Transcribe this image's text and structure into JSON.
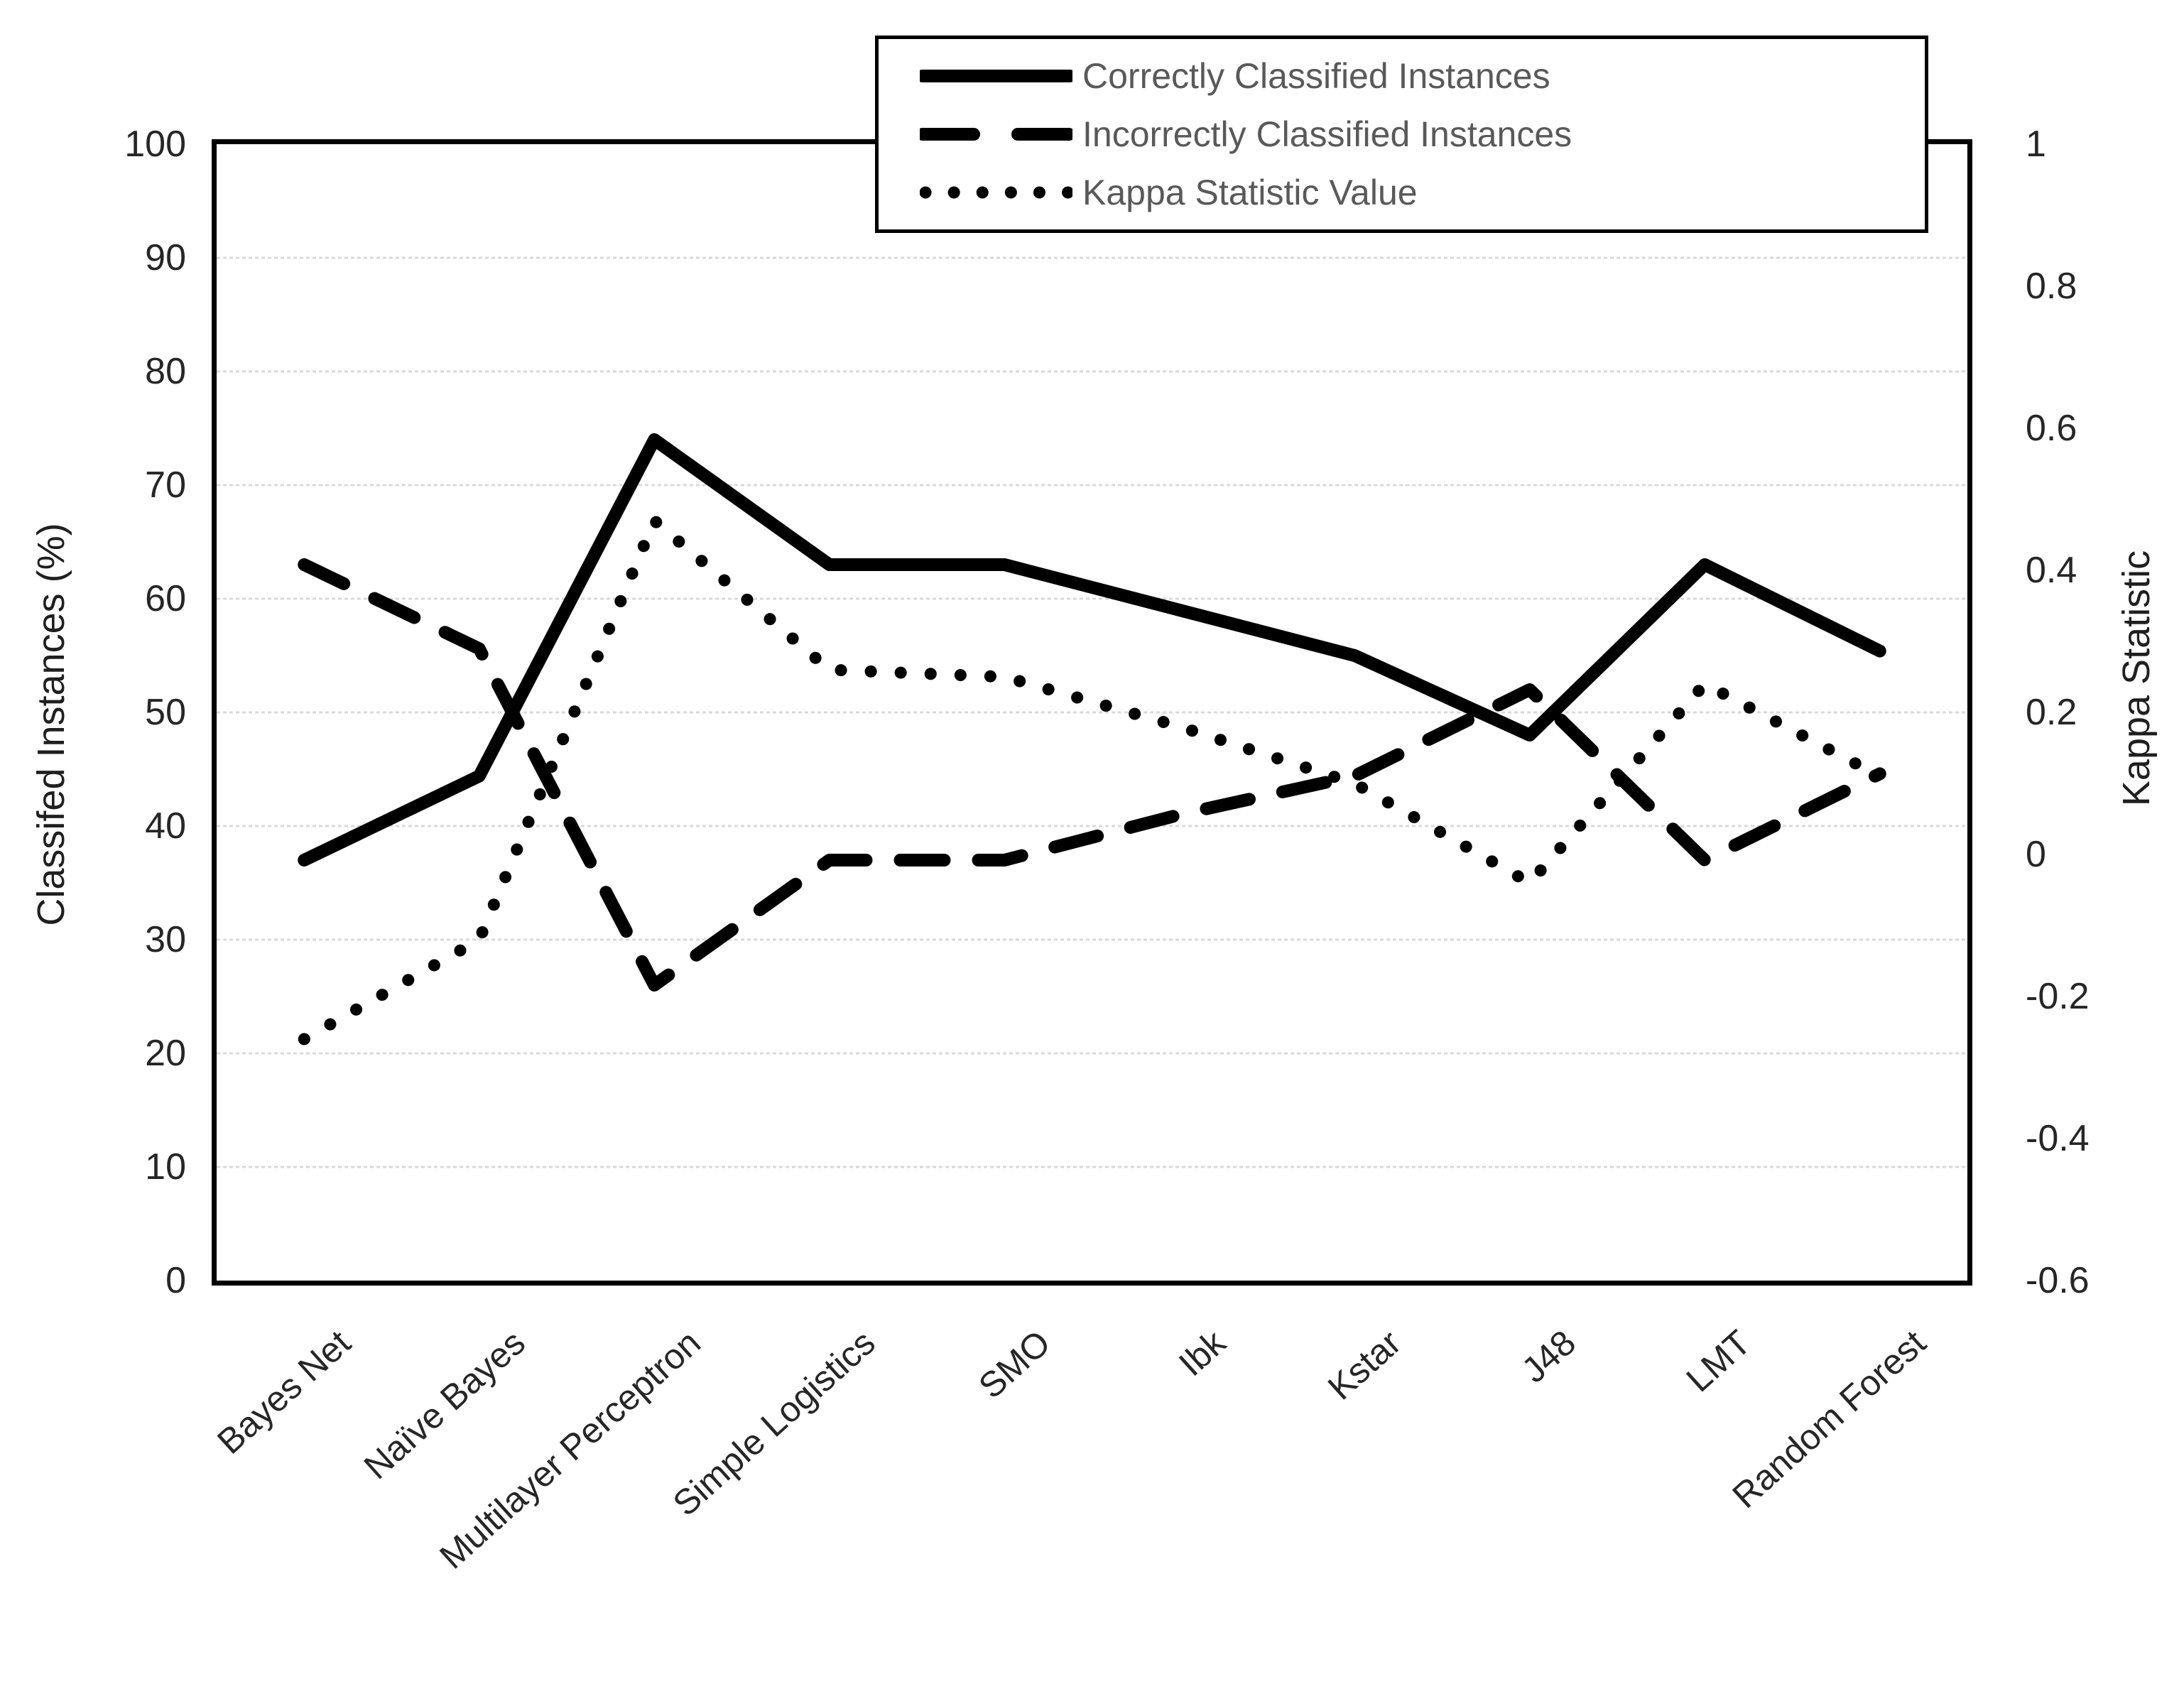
{
  "chart_data": {
    "type": "line",
    "categories": [
      "Bayes Net",
      "Naïve Bayes",
      "Multilayer Perceptron",
      "Simple Logistics",
      "SMO",
      "Ibk",
      "Kstar",
      "J48",
      "LMT",
      "Random Forest"
    ],
    "series": [
      {
        "name": "Correctly Classified Instances",
        "axis": "left",
        "style": "solid",
        "values": [
          37,
          44.4,
          74,
          63,
          63,
          59,
          55,
          48,
          63,
          55.4
        ]
      },
      {
        "name": "Incorrectly Classified Instances",
        "axis": "left",
        "style": "dashed",
        "values": [
          63,
          55.6,
          26,
          37,
          37,
          41,
          44.4,
          52,
          37,
          44.6
        ]
      },
      {
        "name": "Kappa Statistic Value",
        "axis": "right",
        "style": "dotted",
        "values": [
          -0.26,
          -0.12,
          0.47,
          0.26,
          0.25,
          0.18,
          0.1,
          -0.04,
          0.24,
          0.11
        ]
      }
    ],
    "left_axis": {
      "title": "Classifed Instances (%)",
      "min": 0,
      "max": 100,
      "ticks": [
        "100",
        "90",
        "80",
        "70",
        "60",
        "50",
        "40",
        "30",
        "20",
        "10",
        "0"
      ]
    },
    "right_axis": {
      "title": "Kappa Statistic",
      "min": -0.6,
      "max": 1,
      "ticks": [
        "1",
        "0.8",
        "0.6",
        "0.4",
        "0.2",
        "0",
        "-0.2",
        "-0.4",
        "-0.6"
      ]
    },
    "grid": true,
    "legend_position": "top-right"
  },
  "colors": {
    "line": "#000000",
    "grid": "#d9d9d9",
    "legend_text": "#595959",
    "tick_text": "#262626"
  }
}
